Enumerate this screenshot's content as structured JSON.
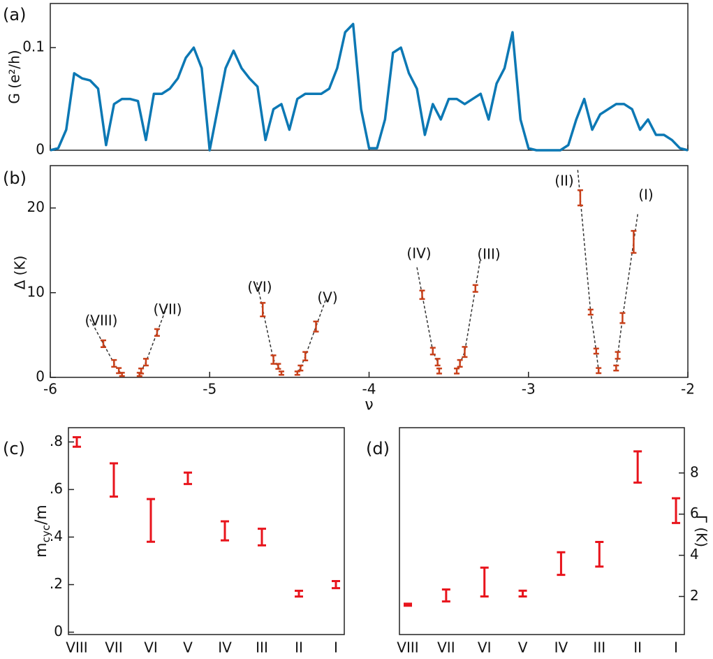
{
  "chart_data": [
    {
      "type": "line",
      "panel_label": "(a)",
      "ylabel": "G (e²/h)",
      "xlim": [
        -6,
        -2
      ],
      "xticks": [
        -6,
        -5,
        -4,
        -3,
        -2
      ],
      "xtick_labels": false,
      "ylim": [
        0,
        0.143
      ],
      "yticks": [
        0,
        0.1
      ],
      "color": "#0c78b4",
      "x": [
        -6.0,
        -5.95,
        -5.9,
        -5.85,
        -5.8,
        -5.75,
        -5.7,
        -5.65,
        -5.6,
        -5.55,
        -5.5,
        -5.45,
        -5.4,
        -5.35,
        -5.3,
        -5.25,
        -5.2,
        -5.15,
        -5.1,
        -5.05,
        -5.0,
        -4.95,
        -4.9,
        -4.85,
        -4.8,
        -4.75,
        -4.7,
        -4.65,
        -4.6,
        -4.55,
        -4.5,
        -4.45,
        -4.4,
        -4.35,
        -4.3,
        -4.25,
        -4.2,
        -4.15,
        -4.1,
        -4.05,
        -4.0,
        -3.95,
        -3.9,
        -3.85,
        -3.8,
        -3.75,
        -3.7,
        -3.65,
        -3.6,
        -3.55,
        -3.5,
        -3.45,
        -3.4,
        -3.35,
        -3.3,
        -3.25,
        -3.2,
        -3.15,
        -3.1,
        -3.05,
        -3.0,
        -2.95,
        -2.9,
        -2.85,
        -2.8,
        -2.75,
        -2.7,
        -2.65,
        -2.6,
        -2.55,
        -2.5,
        -2.45,
        -2.4,
        -2.35,
        -2.3,
        -2.25,
        -2.2,
        -2.15,
        -2.1,
        -2.05,
        -2.0
      ],
      "values": [
        0,
        0.002,
        0.02,
        0.075,
        0.07,
        0.068,
        0.06,
        0.005,
        0.045,
        0.05,
        0.05,
        0.048,
        0.01,
        0.055,
        0.055,
        0.06,
        0.07,
        0.09,
        0.1,
        0.08,
        0,
        0.04,
        0.08,
        0.097,
        0.08,
        0.07,
        0.062,
        0.01,
        0.04,
        0.045,
        0.02,
        0.05,
        0.055,
        0.055,
        0.055,
        0.06,
        0.08,
        0.115,
        0.123,
        0.04,
        0.002,
        0.002,
        0.03,
        0.095,
        0.1,
        0.075,
        0.06,
        0.015,
        0.045,
        0.03,
        0.05,
        0.05,
        0.045,
        0.05,
        0.055,
        0.03,
        0.065,
        0.08,
        0.115,
        0.03,
        0.002,
        0,
        0,
        0,
        0,
        0.005,
        0.03,
        0.05,
        0.02,
        0.035,
        0.04,
        0.045,
        0.045,
        0.04,
        0.02,
        0.03,
        0.015,
        0.015,
        0.01,
        0.002,
        0
      ]
    },
    {
      "type": "scatter",
      "panel_label": "(b)",
      "xlabel": "ν",
      "ylabel": "Δ (K)",
      "xlim": [
        -6,
        -2
      ],
      "xticks": [
        -6,
        -5,
        -4,
        -3,
        -2
      ],
      "ylim": [
        0,
        25
      ],
      "yticks": [
        0,
        10,
        20
      ],
      "color": "#c8401a",
      "x": [
        -5.667,
        -5.6,
        -5.57,
        -5.55,
        -5.44,
        -5.43,
        -5.4,
        -5.33,
        -4.667,
        -4.6,
        -4.57,
        -4.55,
        -4.45,
        -4.43,
        -4.4,
        -4.333,
        -3.667,
        -3.6,
        -3.57,
        -3.56,
        -3.45,
        -3.43,
        -3.4,
        -3.333,
        -2.675,
        -2.61,
        -2.575,
        -2.56,
        -2.45,
        -2.44,
        -2.41,
        -2.34
      ],
      "values": [
        3.97,
        1.65,
        0.8,
        0.35,
        0.35,
        0.75,
        1.8,
        5.3,
        8.0,
        2.1,
        1.3,
        0.5,
        0.5,
        1.1,
        2.5,
        6.0,
        9.75,
        3.1,
        1.8,
        0.75,
        0.75,
        1.65,
        3.0,
        10.5,
        21.2,
        7.7,
        3.1,
        0.8,
        1.1,
        2.6,
        7.0,
        16.0
      ],
      "errors": [
        0.4,
        0.4,
        0.3,
        0.2,
        0.2,
        0.3,
        0.4,
        0.4,
        0.8,
        0.5,
        0.3,
        0.2,
        0.2,
        0.3,
        0.5,
        0.6,
        0.5,
        0.4,
        0.4,
        0.3,
        0.3,
        0.4,
        0.6,
        0.4,
        0.9,
        0.3,
        0.3,
        0.3,
        0.3,
        0.4,
        0.6,
        1.3
      ],
      "annotations": [
        "(VIII)",
        "(VII)",
        "(VI)",
        "(V)",
        "(IV)",
        "(III)",
        "(II)",
        "(I)"
      ]
    },
    {
      "type": "errorbar",
      "panel_label": "(c)",
      "ylabel": [
        "m",
        "cyc",
        "/m"
      ],
      "categories": [
        "VIII",
        "VII",
        "VI",
        "V",
        "IV",
        "III",
        "II",
        "I"
      ],
      "values": [
        0.8,
        0.64,
        0.47,
        0.647,
        0.426,
        0.4,
        0.162,
        0.2
      ],
      "errors": [
        0.02,
        0.07,
        0.09,
        0.024,
        0.04,
        0.035,
        0.012,
        0.015
      ],
      "ylim": [
        -0.01,
        0.86
      ],
      "yticks": [
        0,
        {
          "value": 0.2,
          "label": ".2"
        },
        {
          "value": 0.4,
          "label": ".4"
        },
        {
          "value": 0.6,
          "label": ".6"
        },
        {
          "value": 0.8,
          "label": ".8"
        }
      ],
      "color": "#e8141c"
    },
    {
      "type": "errorbar",
      "panel_label": "(d)",
      "ylabel": "Γ (K)",
      "y_axis": "right",
      "categories": [
        "VIII",
        "VII",
        "VI",
        "V",
        "IV",
        "III",
        "II",
        "I"
      ],
      "values": [
        1.6,
        2.05,
        2.7,
        2.14,
        3.6,
        4.05,
        8.29,
        6.17
      ],
      "errors": [
        0.05,
        0.29,
        0.7,
        0.14,
        0.55,
        0.6,
        0.76,
        0.6
      ],
      "ylim": [
        0.15,
        10.2
      ],
      "yticks": [
        2,
        4,
        6,
        8
      ],
      "color": "#e8141c"
    }
  ]
}
